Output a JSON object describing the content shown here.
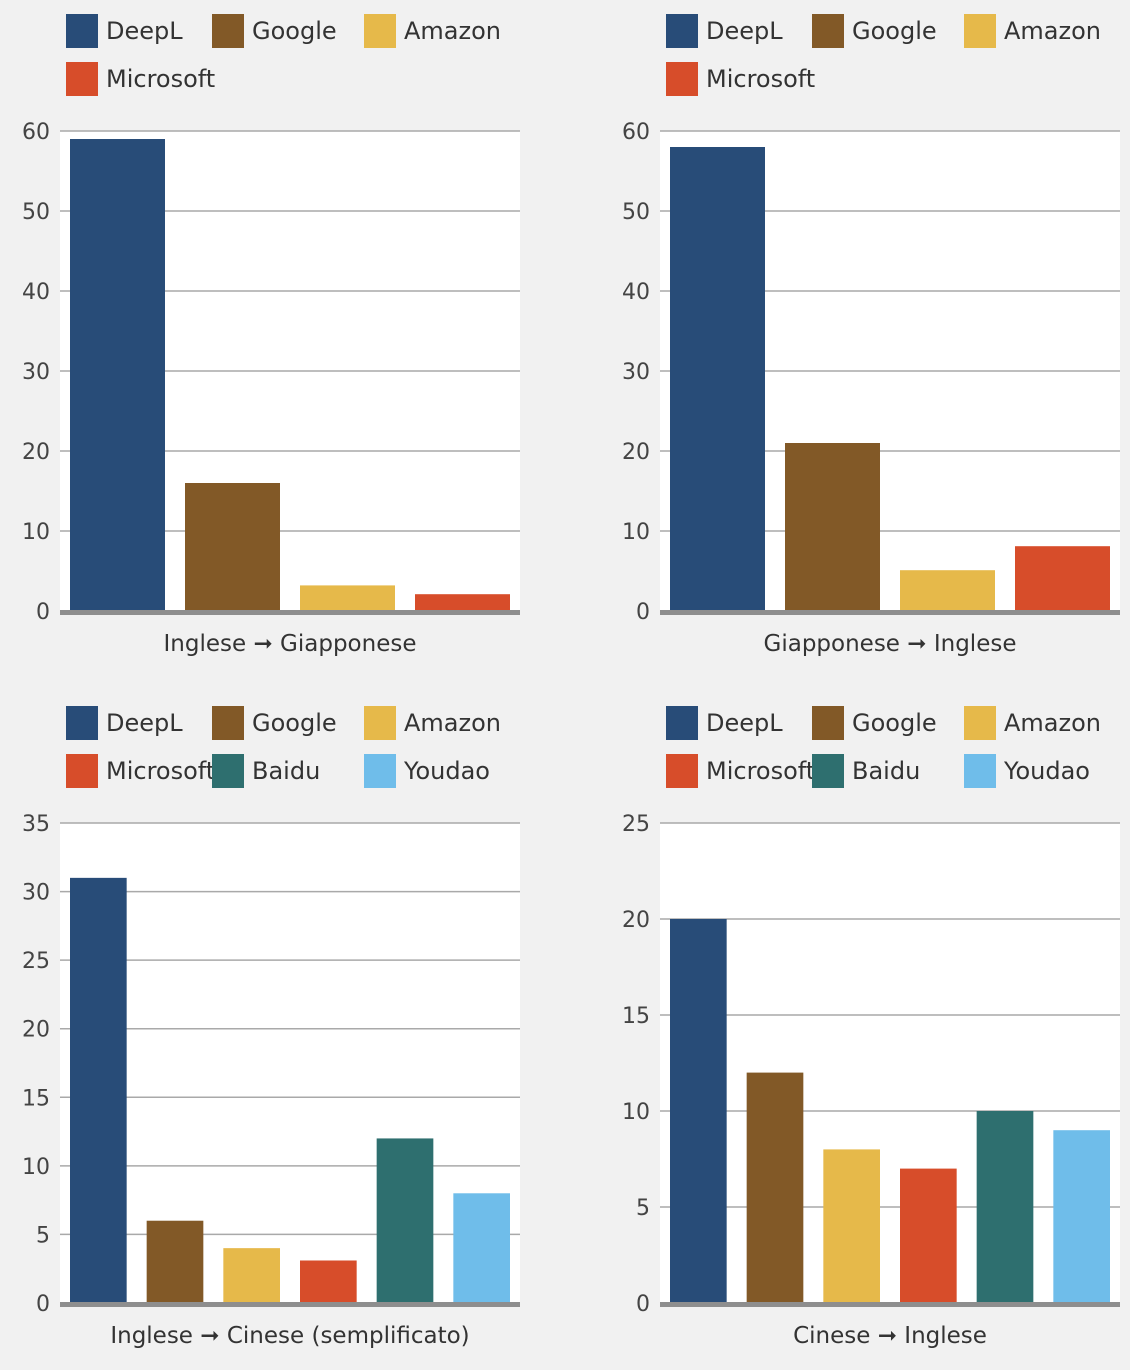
{
  "colors": {
    "DeepL": "#284c78",
    "Google": "#825927",
    "Amazon": "#e6b94a",
    "Microsoft": "#d74d2a",
    "Baidu": "#2e6f6f",
    "Youdao": "#6fbdea"
  },
  "chart_data": [
    {
      "type": "bar",
      "xlabel": "Inglese ➞ Giapponese",
      "ylim": [
        0,
        60
      ],
      "yticks": [
        0,
        10,
        20,
        30,
        40,
        50,
        60
      ],
      "grid": true,
      "legend_position": "top",
      "categories": [
        "DeepL",
        "Google",
        "Amazon",
        "Microsoft"
      ],
      "values": [
        59,
        16,
        3.2,
        2.1
      ]
    },
    {
      "type": "bar",
      "xlabel": "Giapponese ➞ Inglese",
      "ylim": [
        0,
        60
      ],
      "yticks": [
        0,
        10,
        20,
        30,
        40,
        50,
        60
      ],
      "grid": true,
      "legend_position": "top",
      "categories": [
        "DeepL",
        "Google",
        "Amazon",
        "Microsoft"
      ],
      "values": [
        58,
        21,
        5.1,
        8.1
      ]
    },
    {
      "type": "bar",
      "xlabel": "Inglese ➞ Cinese (semplificato)",
      "ylim": [
        0,
        35
      ],
      "yticks": [
        0,
        5,
        10,
        15,
        20,
        25,
        30,
        35
      ],
      "grid": true,
      "legend_position": "top",
      "categories": [
        "DeepL",
        "Google",
        "Amazon",
        "Microsoft",
        "Baidu",
        "Youdao"
      ],
      "values": [
        31,
        6,
        4,
        3.1,
        12,
        8
      ]
    },
    {
      "type": "bar",
      "xlabel": "Cinese ➞ Inglese",
      "ylim": [
        0,
        25
      ],
      "yticks": [
        0,
        5,
        10,
        15,
        20,
        25
      ],
      "grid": true,
      "legend_position": "top",
      "categories": [
        "DeepL",
        "Google",
        "Amazon",
        "Microsoft",
        "Baidu",
        "Youdao"
      ],
      "values": [
        20,
        12,
        8,
        7,
        10,
        9
      ]
    }
  ]
}
